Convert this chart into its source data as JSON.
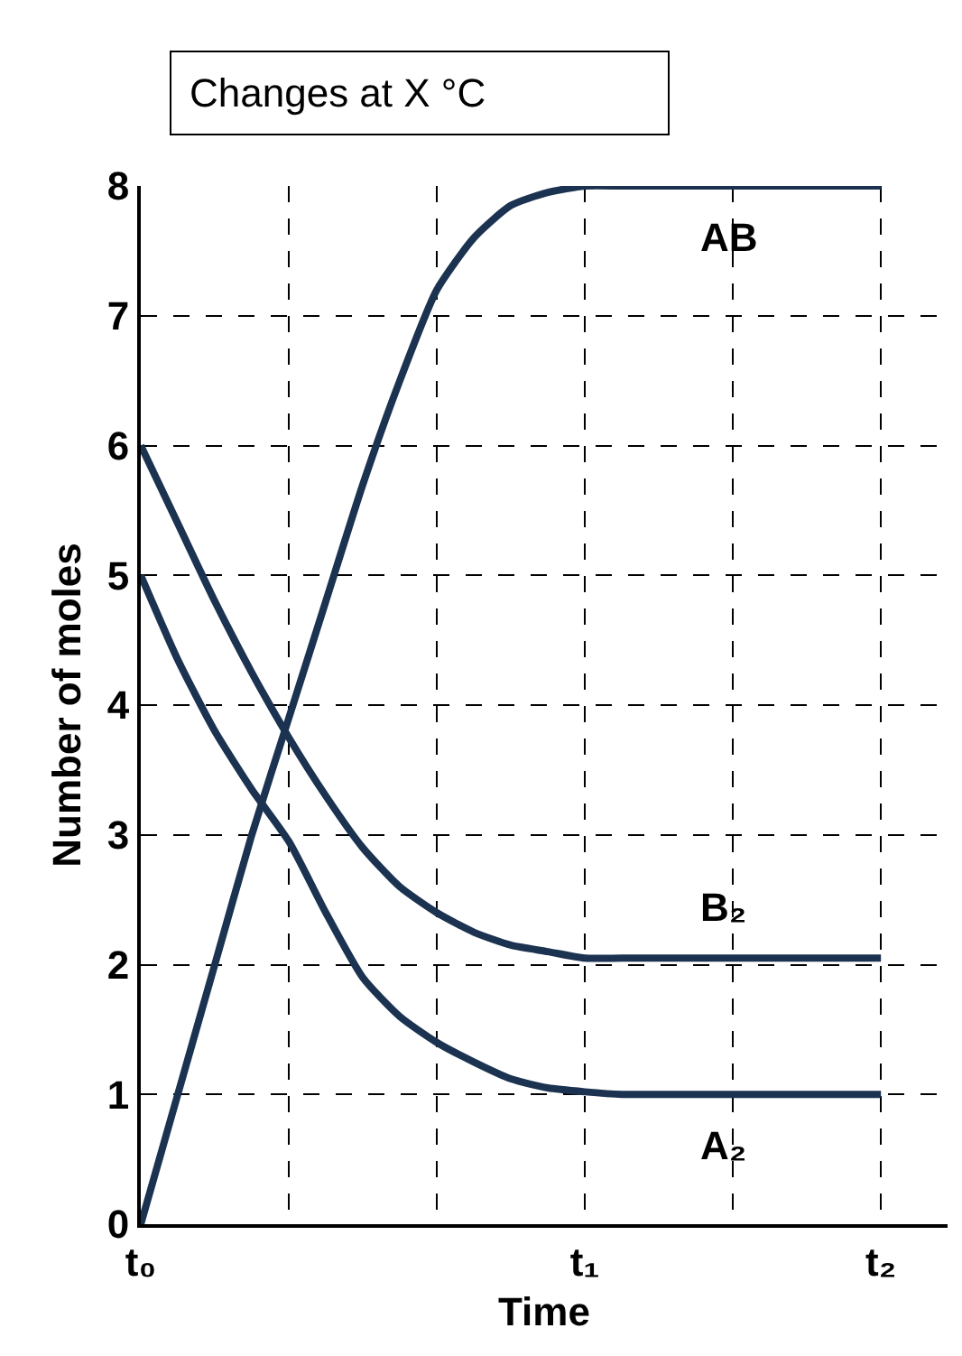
{
  "chart_data": {
    "type": "line",
    "title": "Changes at X °C",
    "xlabel": "Time",
    "ylabel": "Number of moles",
    "categories": [
      "t₀",
      null,
      null,
      null,
      null,
      null,
      null,
      null,
      null,
      null,
      null,
      null,
      "t₁",
      null,
      null,
      null,
      null,
      null,
      null,
      null,
      "t₂"
    ],
    "ylim": [
      0,
      8
    ],
    "yticks": [
      0,
      1,
      2,
      3,
      4,
      5,
      6,
      7,
      8
    ],
    "grid": true,
    "legend": false,
    "marker": "none",
    "line_style": "solid",
    "series": [
      {
        "name": "AB",
        "color": "#1b3350",
        "values": [
          0,
          1,
          2,
          3,
          3.9,
          4.8,
          5.7,
          6.5,
          7.2,
          7.6,
          7.85,
          7.95,
          8,
          8,
          8,
          8,
          8,
          8,
          8,
          8,
          8
        ]
      },
      {
        "name": "B₂",
        "color": "#1b3350",
        "values": [
          6,
          5.4,
          4.8,
          4.25,
          3.75,
          3.3,
          2.9,
          2.6,
          2.4,
          2.25,
          2.15,
          2.1,
          2.05,
          2.05,
          2.05,
          2.05,
          2.05,
          2.05,
          2.05,
          2.05,
          2.05
        ]
      },
      {
        "name": "A₂",
        "color": "#1b3350",
        "values": [
          5,
          4.35,
          3.8,
          3.35,
          2.95,
          2.4,
          1.9,
          1.6,
          1.4,
          1.25,
          1.12,
          1.05,
          1.02,
          1,
          1,
          1,
          1,
          1,
          1,
          1,
          1
        ]
      }
    ]
  }
}
